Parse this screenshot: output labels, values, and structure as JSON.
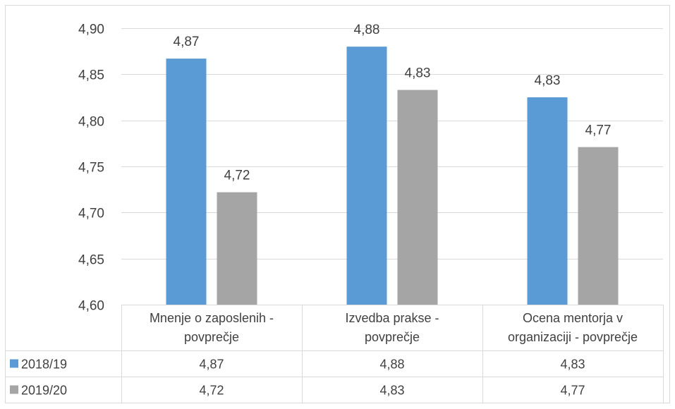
{
  "chart_data": {
    "type": "bar",
    "categories": [
      [
        "Mnenje o zaposlenih -",
        "povprečje"
      ],
      [
        "Izvedba prakse -",
        "povprečje"
      ],
      [
        "Ocena mentorja v",
        "organizaciji - povprečje"
      ]
    ],
    "series": [
      {
        "name": "2018/19",
        "values": [
          4.867,
          4.88,
          4.825
        ],
        "labels": [
          "4,87",
          "4,88",
          "4,83"
        ],
        "color": "#5b9bd5"
      },
      {
        "name": "2019/20",
        "values": [
          4.722,
          4.833,
          4.771
        ],
        "labels": [
          "4,72",
          "4,83",
          "4,77"
        ],
        "color": "#a5a5a5"
      }
    ],
    "ylim": [
      4.6,
      4.9
    ],
    "yticks": [
      {
        "value": 4.6,
        "label": "4,60"
      },
      {
        "value": 4.65,
        "label": "4,65"
      },
      {
        "value": 4.7,
        "label": "4,70"
      },
      {
        "value": 4.75,
        "label": "4,75"
      },
      {
        "value": 4.8,
        "label": "4,80"
      },
      {
        "value": 4.85,
        "label": "4,85"
      },
      {
        "value": 4.9,
        "label": "4,90"
      }
    ],
    "grid": true,
    "legend": "data-table-left",
    "data_table": true,
    "title": "",
    "xlabel": "",
    "ylabel": ""
  }
}
